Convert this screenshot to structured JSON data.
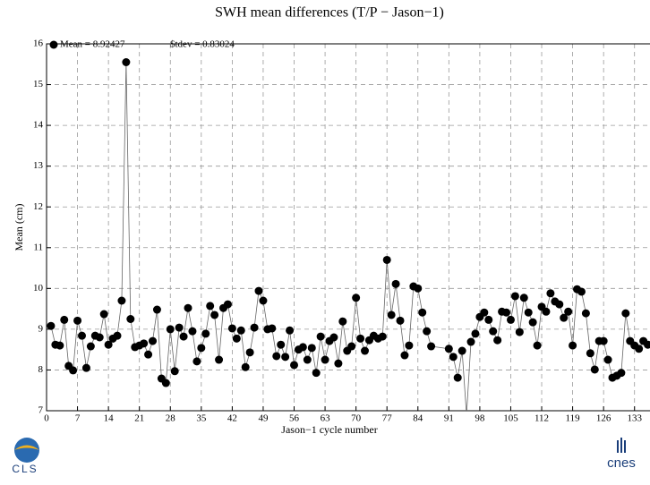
{
  "chart_data": {
    "type": "line",
    "title": "SWH mean differences (T/P − Jason−1)",
    "x_label": "Jason−1 cycle number",
    "y_label": "Mean (cm)",
    "annotations": [
      "Mean = 8.92427",
      "$tdev = 0.83024"
    ],
    "xlim": [
      0,
      136.5
    ],
    "ylim": [
      7,
      16
    ],
    "xticks": [
      0,
      7,
      14,
      21,
      28,
      35,
      42,
      49,
      56,
      63,
      70,
      77,
      84,
      91,
      98,
      105,
      112,
      119,
      126,
      133
    ],
    "yticks": [
      7,
      8,
      9,
      10,
      11,
      12,
      13,
      14,
      15,
      16
    ],
    "grid": true,
    "markers": true,
    "series": [
      {
        "color": "#000000",
        "x": [
          1,
          2,
          3,
          4,
          5,
          6,
          7,
          8,
          9,
          10,
          11,
          12,
          13,
          14,
          15,
          16,
          17,
          18,
          19,
          20,
          21,
          22,
          23,
          24,
          25,
          26,
          27,
          28,
          29,
          30,
          31,
          32,
          33,
          34,
          35,
          36,
          37,
          38,
          39,
          40,
          41,
          42,
          43,
          44,
          45,
          46,
          47,
          48,
          49,
          50,
          51,
          52,
          53,
          54,
          55,
          56,
          57,
          58,
          59,
          60,
          61,
          62,
          63,
          64,
          65,
          66,
          67,
          68,
          69,
          70,
          71,
          72,
          73,
          74,
          75,
          76,
          77,
          78,
          79,
          80,
          81,
          82,
          83,
          84,
          85,
          86,
          87,
          91,
          92,
          93,
          94,
          95,
          96,
          97,
          98,
          99,
          100,
          101,
          102,
          103,
          104,
          105,
          106,
          107,
          108,
          109,
          110,
          111,
          112,
          113,
          114,
          115,
          116,
          117,
          118,
          119,
          120,
          121,
          122,
          123,
          124,
          125,
          126,
          127,
          128,
          129,
          130,
          131,
          132,
          133,
          134,
          135,
          136
        ],
        "values": [
          9.08,
          8.62,
          8.6,
          9.23,
          8.1,
          7.99,
          9.21,
          8.84,
          8.05,
          8.58,
          8.84,
          8.8,
          9.37,
          8.62,
          8.77,
          8.84,
          9.7,
          15.55,
          9.25,
          8.56,
          8.6,
          8.65,
          8.38,
          8.71,
          9.48,
          7.79,
          7.68,
          9.0,
          7.97,
          9.04,
          8.82,
          9.52,
          8.95,
          8.21,
          8.54,
          8.89,
          9.57,
          9.35,
          8.25,
          9.52,
          9.61,
          9.02,
          8.77,
          8.97,
          8.07,
          8.43,
          9.04,
          9.94,
          9.7,
          9.0,
          9.02,
          8.34,
          8.62,
          8.32,
          8.97,
          8.12,
          8.5,
          8.56,
          8.25,
          8.54,
          7.93,
          8.82,
          8.25,
          8.71,
          8.8,
          8.16,
          9.19,
          8.47,
          8.58,
          9.77,
          8.77,
          8.47,
          8.73,
          8.84,
          8.77,
          8.82,
          10.7,
          9.35,
          10.11,
          9.21,
          8.36,
          8.6,
          10.05,
          10.0,
          9.41,
          8.95,
          8.58,
          8.52,
          8.32,
          7.81,
          8.47,
          6.9,
          8.69,
          8.89,
          9.3,
          9.41,
          9.23,
          8.95,
          8.73,
          9.43,
          9.41,
          9.23,
          9.81,
          8.93,
          9.77,
          9.41,
          9.17,
          8.6,
          9.55,
          9.43,
          9.88,
          9.68,
          9.61,
          9.28,
          9.43,
          8.6,
          9.98,
          9.92,
          9.39,
          8.41,
          8.01,
          8.71,
          8.71,
          8.25,
          7.81,
          7.86,
          7.93,
          9.39,
          8.71,
          8.6,
          8.52,
          8.71,
          8.62
        ]
      }
    ]
  },
  "logos": {
    "left": "CLS",
    "right": "cnes"
  }
}
